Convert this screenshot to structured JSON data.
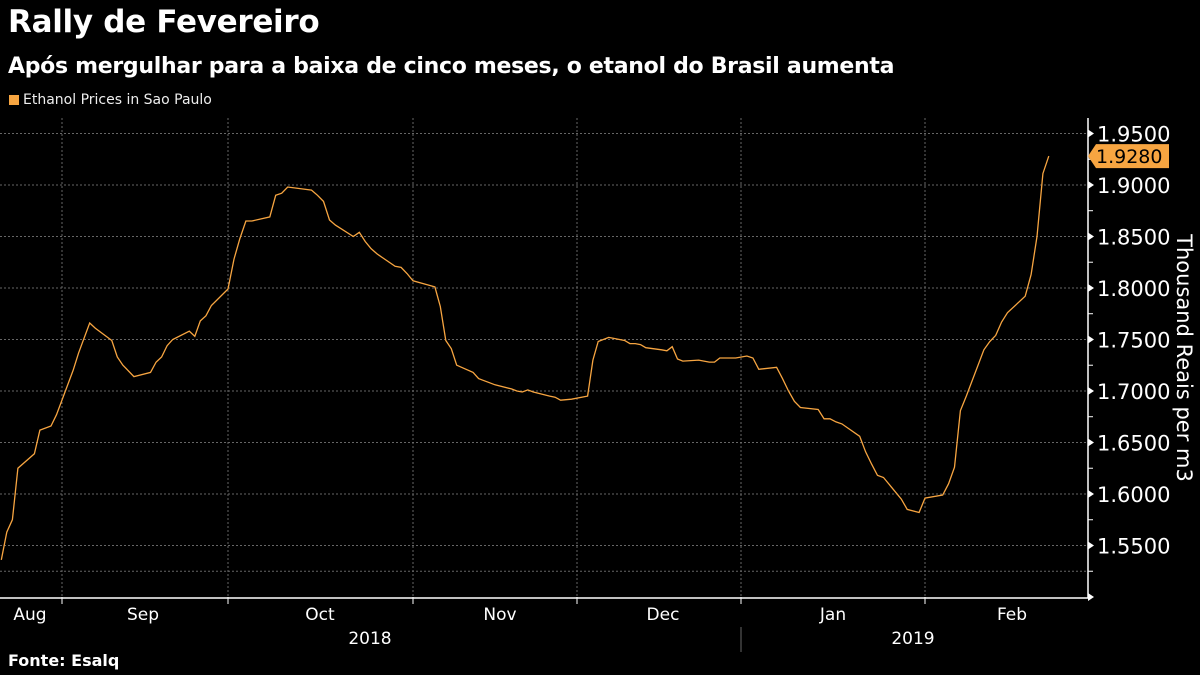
{
  "title": "Rally de Fevereiro",
  "subtitle": "Após mergulhar para a baixa de cinco meses, o etanol do Brasil aumenta",
  "source": "Fonte: Esalq",
  "chart_data": {
    "type": "line",
    "title": "Rally de Fevereiro",
    "subtitle": "Após mergulhar para a baixa de cinco meses, o etanol do Brasil aumenta",
    "ylabel": "Thousand Reais per m3",
    "xlabel": "",
    "ylim": [
      1.5,
      1.965
    ],
    "y_ticks": [
      "1.5500",
      "1.6000",
      "1.6500",
      "1.7000",
      "1.7500",
      "1.8000",
      "1.8500",
      "1.9000",
      "1.9500"
    ],
    "x_ticks": [
      "Aug",
      "Sep",
      "Oct",
      "Nov",
      "Dec",
      "Jan",
      "Feb"
    ],
    "x_years": [
      "2018",
      "2019"
    ],
    "grid": true,
    "legend_position": "top-left",
    "last_value_label": "1.9280",
    "series": [
      {
        "name": "Ethanol Prices in Sao Paulo",
        "color": "#f7a541",
        "points": [
          [
            "2018-08-21",
            1.536
          ],
          [
            "2018-08-22",
            1.563
          ],
          [
            "2018-08-23",
            1.575
          ],
          [
            "2018-08-24",
            1.625
          ],
          [
            "2018-08-27",
            1.639
          ],
          [
            "2018-08-28",
            1.662
          ],
          [
            "2018-08-30",
            1.666
          ],
          [
            "2018-08-31",
            1.677
          ],
          [
            "2018-09-03",
            1.72
          ],
          [
            "2018-09-04",
            1.737
          ],
          [
            "2018-09-06",
            1.766
          ],
          [
            "2018-09-07",
            1.761
          ],
          [
            "2018-09-10",
            1.749
          ],
          [
            "2018-09-11",
            1.733
          ],
          [
            "2018-09-12",
            1.725
          ],
          [
            "2018-09-14",
            1.714
          ],
          [
            "2018-09-17",
            1.718
          ],
          [
            "2018-09-18",
            1.728
          ],
          [
            "2018-09-19",
            1.733
          ],
          [
            "2018-09-20",
            1.744
          ],
          [
            "2018-09-21",
            1.75
          ],
          [
            "2018-09-24",
            1.758
          ],
          [
            "2018-09-25",
            1.753
          ],
          [
            "2018-09-26",
            1.768
          ],
          [
            "2018-09-27",
            1.773
          ],
          [
            "2018-09-28",
            1.783
          ],
          [
            "2018-10-01",
            1.799
          ],
          [
            "2018-10-02",
            1.828
          ],
          [
            "2018-10-03",
            1.848
          ],
          [
            "2018-10-04",
            1.865
          ],
          [
            "2018-10-05",
            1.865
          ],
          [
            "2018-10-08",
            1.869
          ],
          [
            "2018-10-09",
            1.89
          ],
          [
            "2018-10-10",
            1.892
          ],
          [
            "2018-10-11",
            1.898
          ],
          [
            "2018-10-15",
            1.895
          ],
          [
            "2018-10-16",
            1.89
          ],
          [
            "2018-10-17",
            1.884
          ],
          [
            "2018-10-18",
            1.866
          ],
          [
            "2018-10-19",
            1.861
          ],
          [
            "2018-10-22",
            1.85
          ],
          [
            "2018-10-23",
            1.854
          ],
          [
            "2018-10-24",
            1.845
          ],
          [
            "2018-10-25",
            1.838
          ],
          [
            "2018-10-26",
            1.833
          ],
          [
            "2018-10-29",
            1.821
          ],
          [
            "2018-10-30",
            1.82
          ],
          [
            "2018-10-31",
            1.814
          ],
          [
            "2018-11-01",
            1.807
          ],
          [
            "2018-11-05",
            1.801
          ],
          [
            "2018-11-06",
            1.782
          ],
          [
            "2018-11-07",
            1.749
          ],
          [
            "2018-11-08",
            1.741
          ],
          [
            "2018-11-09",
            1.725
          ],
          [
            "2018-11-12",
            1.718
          ],
          [
            "2018-11-13",
            1.712
          ],
          [
            "2018-11-14",
            1.71
          ],
          [
            "2018-11-16",
            1.706
          ],
          [
            "2018-11-19",
            1.702
          ],
          [
            "2018-11-20",
            1.7
          ],
          [
            "2018-11-21",
            1.699
          ],
          [
            "2018-11-22",
            1.701
          ],
          [
            "2018-11-23",
            1.699
          ],
          [
            "2018-11-26",
            1.695
          ],
          [
            "2018-11-27",
            1.694
          ],
          [
            "2018-11-28",
            1.691
          ],
          [
            "2018-11-30",
            1.692
          ],
          [
            "2018-12-03",
            1.695
          ],
          [
            "2018-12-04",
            1.73
          ],
          [
            "2018-12-05",
            1.748
          ],
          [
            "2018-12-07",
            1.752
          ],
          [
            "2018-12-10",
            1.749
          ],
          [
            "2018-12-11",
            1.746
          ],
          [
            "2018-12-12",
            1.746
          ],
          [
            "2018-12-13",
            1.745
          ],
          [
            "2018-12-14",
            1.742
          ],
          [
            "2018-12-17",
            1.74
          ],
          [
            "2018-12-18",
            1.739
          ],
          [
            "2018-12-19",
            1.743
          ],
          [
            "2018-12-20",
            1.731
          ],
          [
            "2018-12-21",
            1.729
          ],
          [
            "2018-12-24",
            1.73
          ],
          [
            "2018-12-26",
            1.728
          ],
          [
            "2018-12-27",
            1.728
          ],
          [
            "2018-12-28",
            1.732
          ],
          [
            "2018-12-31",
            1.732
          ],
          [
            "2019-01-02",
            1.734
          ],
          [
            "2019-01-03",
            1.732
          ],
          [
            "2019-01-04",
            1.721
          ],
          [
            "2019-01-07",
            1.723
          ],
          [
            "2019-01-08",
            1.712
          ],
          [
            "2019-01-09",
            1.7
          ],
          [
            "2019-01-10",
            1.69
          ],
          [
            "2019-01-11",
            1.684
          ],
          [
            "2019-01-14",
            1.682
          ],
          [
            "2019-01-15",
            1.673
          ],
          [
            "2019-01-16",
            1.673
          ],
          [
            "2019-01-17",
            1.67
          ],
          [
            "2019-01-18",
            1.668
          ],
          [
            "2019-01-21",
            1.656
          ],
          [
            "2019-01-22",
            1.641
          ],
          [
            "2019-01-23",
            1.629
          ],
          [
            "2019-01-24",
            1.618
          ],
          [
            "2019-01-25",
            1.616
          ],
          [
            "2019-01-28",
            1.595
          ],
          [
            "2019-01-29",
            1.585
          ],
          [
            "2019-01-31",
            1.582
          ],
          [
            "2019-02-01",
            1.596
          ],
          [
            "2019-02-04",
            1.599
          ],
          [
            "2019-02-05",
            1.61
          ],
          [
            "2019-02-06",
            1.626
          ],
          [
            "2019-02-07",
            1.681
          ],
          [
            "2019-02-08",
            1.695
          ],
          [
            "2019-02-11",
            1.74
          ],
          [
            "2019-02-12",
            1.748
          ],
          [
            "2019-02-13",
            1.754
          ],
          [
            "2019-02-14",
            1.767
          ],
          [
            "2019-02-15",
            1.776
          ],
          [
            "2019-02-18",
            1.792
          ],
          [
            "2019-02-19",
            1.813
          ],
          [
            "2019-02-20",
            1.85
          ],
          [
            "2019-02-21",
            1.911
          ],
          [
            "2019-02-22",
            1.928
          ]
        ]
      }
    ]
  }
}
